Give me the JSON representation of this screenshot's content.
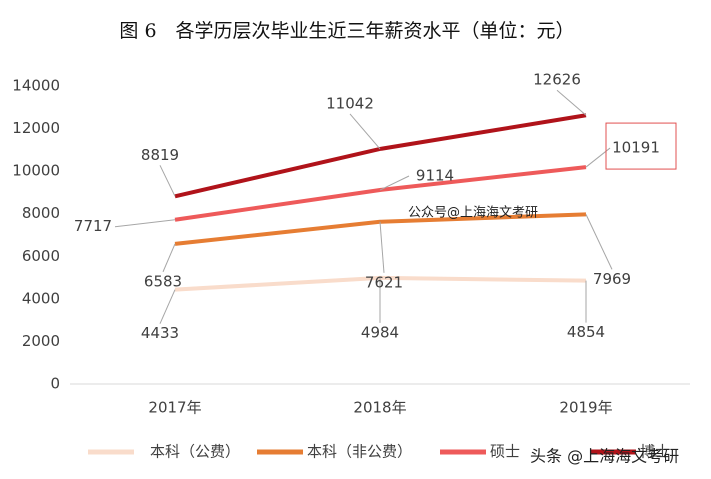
{
  "chart_data": {
    "type": "line",
    "title": "图 6　各学历层次毕业生近三年薪资水平（单位：元）",
    "categories": [
      "2017年",
      "2018年",
      "2019年"
    ],
    "series": [
      {
        "name": "本科（公费）",
        "color": "#f9dccb",
        "values": [
          4433,
          4984,
          4854
        ]
      },
      {
        "name": "本科（非公费）",
        "color": "#e67d33",
        "values": [
          6583,
          7621,
          7969
        ]
      },
      {
        "name": "硕士",
        "color": "#ee5a5a",
        "values": [
          7717,
          9114,
          10191
        ]
      },
      {
        "name": "博士",
        "color": "#b0131a",
        "values": [
          8819,
          11042,
          12626
        ]
      }
    ],
    "ylim": [
      0,
      14000
    ],
    "yticks": [
      0,
      2000,
      4000,
      6000,
      8000,
      10000,
      12000,
      14000
    ],
    "legend": "bottom",
    "annotations": [
      "公众号@上海海文考研",
      "头条 @上海海文考研"
    ]
  }
}
